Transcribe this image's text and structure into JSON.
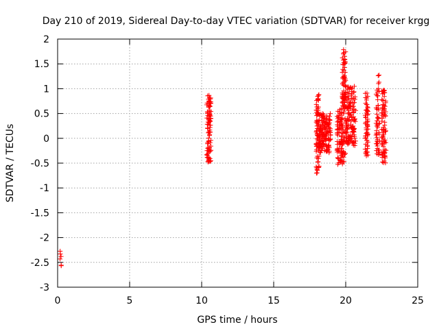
{
  "chart_data": {
    "type": "scatter",
    "title": "Day 210 of 2019, Sidereal Day-to-day VTEC variation (SDTVAR) for receiver krgg",
    "xlabel": "GPS time / hours",
    "ylabel": "SDTVAR / TECUs",
    "xlim": [
      0,
      25
    ],
    "ylim": [
      -3,
      2
    ],
    "x_ticks": [
      "0",
      "5",
      "10",
      "15",
      "20",
      "25"
    ],
    "y_ticks": [
      "-3",
      "-2.5",
      "-2",
      "-1.5",
      "-1",
      "-0.5",
      "0",
      "0.5",
      "1",
      "1.5",
      "2"
    ],
    "grid": true,
    "marker": "+",
    "series_color": "#ff0000",
    "clusters": [
      {
        "x_range": [
          0.15,
          0.25
        ],
        "y_range": [
          -2.6,
          -2.2
        ],
        "count": 6
      },
      {
        "x_range": [
          10.35,
          10.65
        ],
        "y_range": [
          -0.48,
          0.88
        ],
        "count": 90
      },
      {
        "x_range": [
          17.95,
          18.15
        ],
        "y_range": [
          -0.72,
          0.88
        ],
        "count": 70
      },
      {
        "x_range": [
          18.15,
          18.95
        ],
        "y_range": [
          -0.3,
          0.5
        ],
        "count": 160
      },
      {
        "x_range": [
          19.4,
          20.0
        ],
        "y_range": [
          -0.55,
          0.6
        ],
        "count": 110
      },
      {
        "x_range": [
          19.75,
          20.0
        ],
        "y_range": [
          0.6,
          1.8
        ],
        "count": 70
      },
      {
        "x_range": [
          20.0,
          20.7
        ],
        "y_range": [
          -0.15,
          1.05
        ],
        "count": 140
      },
      {
        "x_range": [
          21.35,
          21.55
        ],
        "y_range": [
          -0.38,
          0.95
        ],
        "count": 60
      },
      {
        "x_range": [
          22.1,
          22.35
        ],
        "y_range": [
          -0.35,
          1.3
        ],
        "count": 55
      },
      {
        "x_range": [
          22.5,
          22.8
        ],
        "y_range": [
          -0.55,
          1.0
        ],
        "count": 80
      }
    ]
  }
}
